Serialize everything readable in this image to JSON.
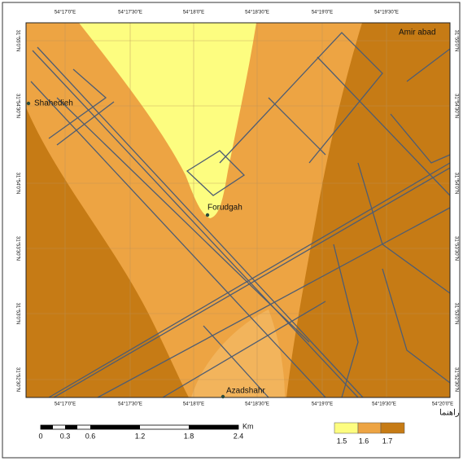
{
  "map": {
    "top_labels": [
      "54°17'0\"E",
      "54°17'30\"E",
      "54°18'0\"E",
      "54°18'30\"E",
      "54°19'0\"E",
      "54°19'30\"E"
    ],
    "bottom_labels": [
      "54°17'0\"E",
      "54°17'30\"E",
      "54°18'0\"E",
      "54°18'30\"E",
      "54°19'0\"E",
      "54°19'30\"E",
      "54°20'0\"E"
    ],
    "left_labels": [
      "31°55'0\"N",
      "31°54'30\"N",
      "31°54'0\"N",
      "31°53'30\"N",
      "31°53'0\"N",
      "31°52'30\"N"
    ],
    "right_labels": [
      "31°55'0\"N",
      "31°54'30\"N",
      "31°54'0\"N",
      "31°53'30\"N",
      "31°53'0\"N",
      "31°52'30\"N"
    ],
    "places": [
      "Amir abad",
      "Shahedieh",
      "Forudgah",
      "Azadshahr"
    ],
    "scale": {
      "labels": [
        "0",
        "0.3",
        "0.6",
        "1.2",
        "1.8",
        "2.4"
      ],
      "unit": "Km"
    },
    "legend": {
      "title": "راهنما",
      "labels": [
        "1.5",
        "1.6",
        "1.7"
      ]
    }
  }
}
